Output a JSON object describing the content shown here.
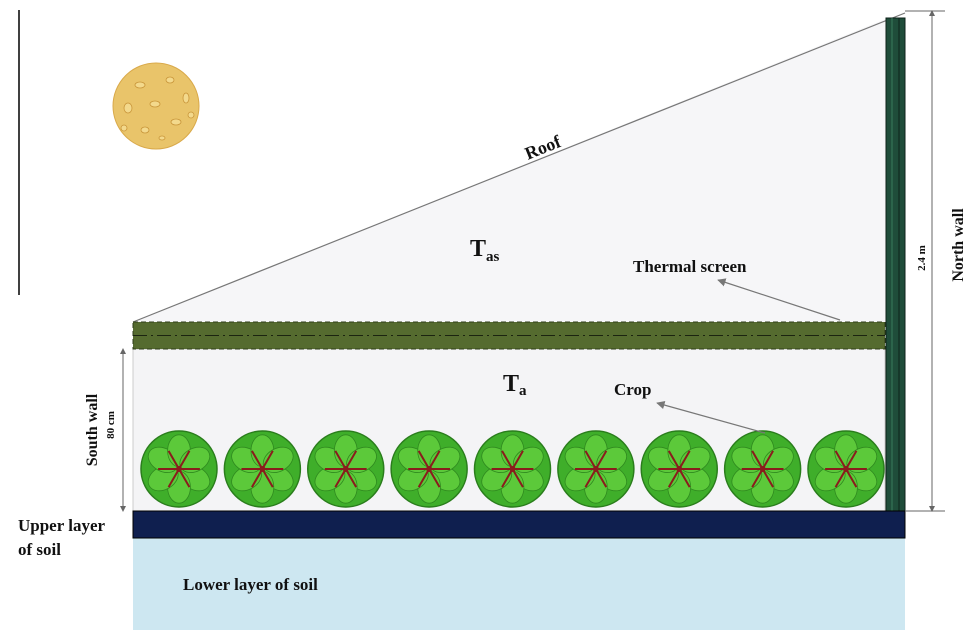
{
  "labels": {
    "roof": "Roof",
    "upper_air_symbol": "T",
    "upper_air_sub": "as",
    "lower_air_symbol": "T",
    "lower_air_sub": "a",
    "thermal_screen": "Thermal screen",
    "crop": "Crop",
    "south_wall": "South wall",
    "south_wall_height": "80 cm",
    "north_wall": "North wall",
    "north_wall_height": "2.4 m",
    "upper_soil_line1": "Upper layer",
    "upper_soil_line2": "of soil",
    "lower_soil": "Lower layer of soil"
  },
  "crop_count": 9,
  "colors": {
    "air_fill": "#f6f6f8",
    "thermal_screen": "#556b2f",
    "north_wall": "#1f4d3a",
    "upper_soil": "#0f1f4f",
    "lower_soil": "#cde7f1",
    "crop_outer": "#3fae2a",
    "crop_inner": "#8a1c1c",
    "sun": "#e9c46a",
    "arrow": "#777777"
  }
}
